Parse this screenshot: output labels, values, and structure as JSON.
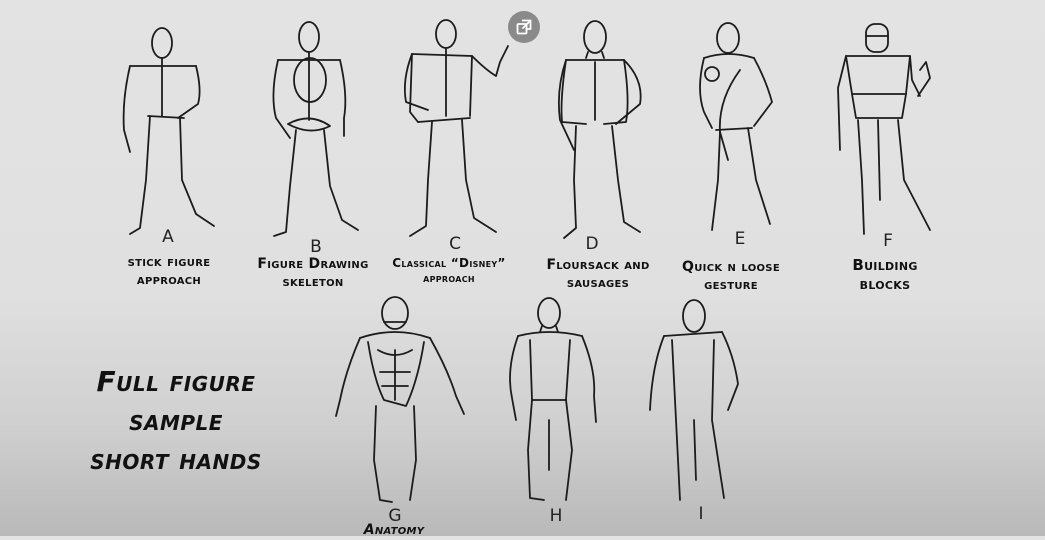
{
  "figures": [
    {
      "letter": "A",
      "caption": [
        "stick figure",
        "approach"
      ]
    },
    {
      "letter": "B",
      "caption": [
        "Figure Drawing",
        "skeleton"
      ]
    },
    {
      "letter": "C",
      "caption": [
        "Classical “Disney”",
        "approach"
      ]
    },
    {
      "letter": "D",
      "caption": [
        "Floursack and",
        "sausages"
      ]
    },
    {
      "letter": "E",
      "caption": [
        "Quick n loose",
        "gesture"
      ]
    },
    {
      "letter": "F",
      "caption": [
        "Building",
        "blocks"
      ]
    },
    {
      "letter": "G",
      "caption": [
        "Anatomy"
      ]
    },
    {
      "letter": "H",
      "caption": []
    },
    {
      "letter": "I",
      "caption": []
    }
  ],
  "title": [
    "Full figure",
    "sample",
    "short hands"
  ],
  "overlay": {
    "popout_icon": "popout-icon"
  },
  "colors": {
    "ink": "#1c1c1c",
    "paper": "#e3e3e3",
    "button": "#8a8a8a"
  }
}
